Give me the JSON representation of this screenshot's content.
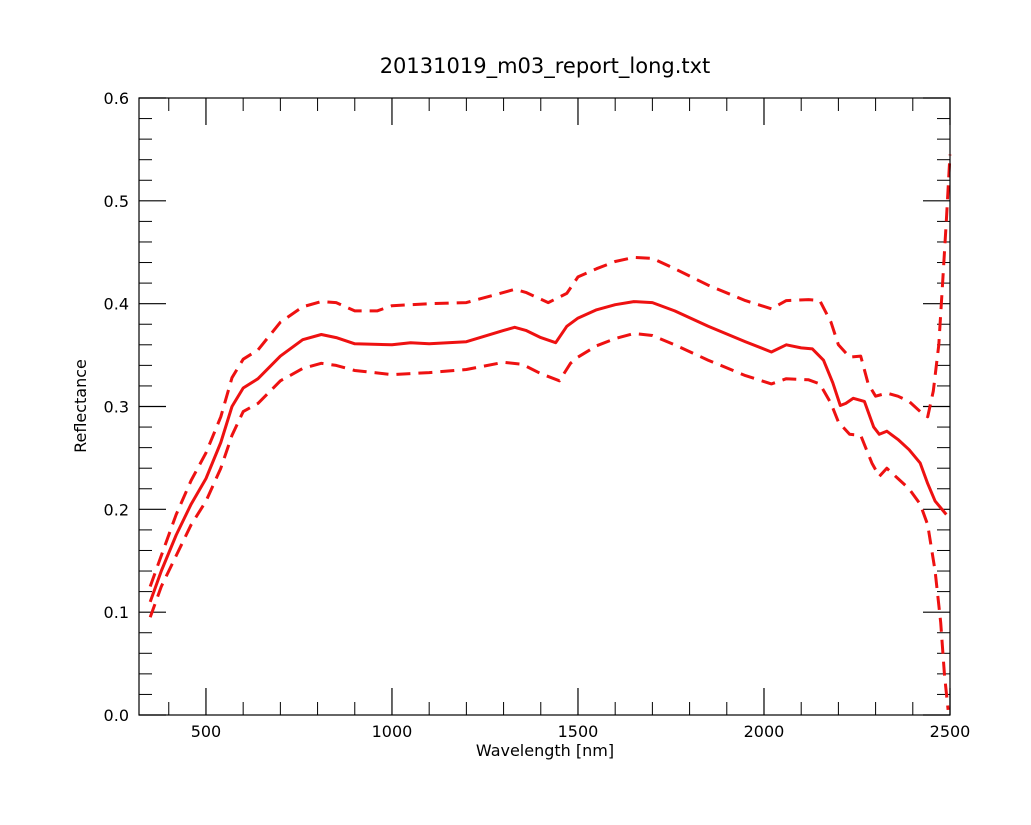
{
  "chart_data": {
    "type": "line",
    "title": "20131019_m03_report_long.txt",
    "xlabel": "Wavelength [nm]",
    "ylabel": "Reflectance",
    "xlim": [
      320,
      2500
    ],
    "ylim": [
      0.0,
      0.6
    ],
    "x_ticks": [
      500,
      1000,
      1500,
      2000,
      2500
    ],
    "y_ticks": [
      0.0,
      0.1,
      0.2,
      0.3,
      0.4,
      0.5,
      0.6
    ],
    "x_tick_labels": [
      "500",
      "1000",
      "1500",
      "2000",
      "2500"
    ],
    "y_tick_labels": [
      "0.0",
      "0.1",
      "0.2",
      "0.3",
      "0.4",
      "0.5",
      "0.6"
    ],
    "grid": false,
    "line_color": "#ee1111",
    "series": [
      {
        "style": "solid",
        "points": [
          [
            350,
            0.11
          ],
          [
            380,
            0.14
          ],
          [
            420,
            0.175
          ],
          [
            460,
            0.205
          ],
          [
            500,
            0.23
          ],
          [
            540,
            0.265
          ],
          [
            570,
            0.3
          ],
          [
            600,
            0.318
          ],
          [
            640,
            0.327
          ],
          [
            700,
            0.349
          ],
          [
            760,
            0.365
          ],
          [
            810,
            0.37
          ],
          [
            850,
            0.367
          ],
          [
            900,
            0.361
          ],
          [
            1000,
            0.36
          ],
          [
            1050,
            0.362
          ],
          [
            1100,
            0.361
          ],
          [
            1200,
            0.363
          ],
          [
            1300,
            0.374
          ],
          [
            1330,
            0.377
          ],
          [
            1360,
            0.374
          ],
          [
            1400,
            0.367
          ],
          [
            1440,
            0.362
          ],
          [
            1470,
            0.378
          ],
          [
            1500,
            0.386
          ],
          [
            1550,
            0.394
          ],
          [
            1600,
            0.399
          ],
          [
            1650,
            0.402
          ],
          [
            1700,
            0.401
          ],
          [
            1760,
            0.393
          ],
          [
            1850,
            0.378
          ],
          [
            1950,
            0.363
          ],
          [
            2020,
            0.353
          ],
          [
            2060,
            0.36
          ],
          [
            2100,
            0.357
          ],
          [
            2130,
            0.356
          ],
          [
            2160,
            0.345
          ],
          [
            2185,
            0.323
          ],
          [
            2205,
            0.301
          ],
          [
            2220,
            0.303
          ],
          [
            2240,
            0.308
          ],
          [
            2270,
            0.305
          ],
          [
            2295,
            0.28
          ],
          [
            2310,
            0.273
          ],
          [
            2330,
            0.276
          ],
          [
            2360,
            0.268
          ],
          [
            2390,
            0.258
          ],
          [
            2420,
            0.245
          ],
          [
            2440,
            0.225
          ],
          [
            2460,
            0.208
          ],
          [
            2490,
            0.195
          ]
        ]
      },
      {
        "style": "dashed",
        "points": [
          [
            350,
            0.125
          ],
          [
            380,
            0.155
          ],
          [
            420,
            0.195
          ],
          [
            460,
            0.228
          ],
          [
            500,
            0.255
          ],
          [
            540,
            0.29
          ],
          [
            570,
            0.328
          ],
          [
            600,
            0.346
          ],
          [
            640,
            0.355
          ],
          [
            700,
            0.382
          ],
          [
            760,
            0.397
          ],
          [
            810,
            0.402
          ],
          [
            850,
            0.401
          ],
          [
            900,
            0.393
          ],
          [
            960,
            0.393
          ],
          [
            1000,
            0.398
          ],
          [
            1050,
            0.399
          ],
          [
            1100,
            0.4
          ],
          [
            1200,
            0.401
          ],
          [
            1300,
            0.411
          ],
          [
            1330,
            0.414
          ],
          [
            1360,
            0.411
          ],
          [
            1420,
            0.401
          ],
          [
            1470,
            0.41
          ],
          [
            1500,
            0.426
          ],
          [
            1550,
            0.434
          ],
          [
            1600,
            0.441
          ],
          [
            1650,
            0.445
          ],
          [
            1700,
            0.444
          ],
          [
            1760,
            0.434
          ],
          [
            1850,
            0.418
          ],
          [
            1950,
            0.403
          ],
          [
            2020,
            0.395
          ],
          [
            2060,
            0.403
          ],
          [
            2120,
            0.404
          ],
          [
            2150,
            0.403
          ],
          [
            2180,
            0.382
          ],
          [
            2200,
            0.36
          ],
          [
            2230,
            0.348
          ],
          [
            2260,
            0.349
          ],
          [
            2280,
            0.322
          ],
          [
            2300,
            0.31
          ],
          [
            2330,
            0.313
          ],
          [
            2360,
            0.31
          ],
          [
            2390,
            0.305
          ],
          [
            2420,
            0.295
          ],
          [
            2440,
            0.29
          ],
          [
            2455,
            0.315
          ],
          [
            2470,
            0.36
          ],
          [
            2480,
            0.42
          ],
          [
            2490,
            0.48
          ],
          [
            2500,
            0.545
          ]
        ]
      },
      {
        "style": "dashed",
        "points": [
          [
            350,
            0.095
          ],
          [
            380,
            0.125
          ],
          [
            420,
            0.155
          ],
          [
            460,
            0.185
          ],
          [
            500,
            0.208
          ],
          [
            540,
            0.24
          ],
          [
            570,
            0.272
          ],
          [
            600,
            0.295
          ],
          [
            640,
            0.303
          ],
          [
            700,
            0.325
          ],
          [
            760,
            0.337
          ],
          [
            810,
            0.342
          ],
          [
            850,
            0.34
          ],
          [
            900,
            0.335
          ],
          [
            1000,
            0.331
          ],
          [
            1100,
            0.333
          ],
          [
            1200,
            0.336
          ],
          [
            1300,
            0.343
          ],
          [
            1350,
            0.341
          ],
          [
            1400,
            0.332
          ],
          [
            1450,
            0.325
          ],
          [
            1480,
            0.342
          ],
          [
            1500,
            0.348
          ],
          [
            1550,
            0.359
          ],
          [
            1600,
            0.366
          ],
          [
            1650,
            0.371
          ],
          [
            1700,
            0.369
          ],
          [
            1760,
            0.36
          ],
          [
            1850,
            0.345
          ],
          [
            1950,
            0.33
          ],
          [
            2020,
            0.322
          ],
          [
            2060,
            0.327
          ],
          [
            2120,
            0.326
          ],
          [
            2150,
            0.322
          ],
          [
            2180,
            0.303
          ],
          [
            2200,
            0.285
          ],
          [
            2230,
            0.273
          ],
          [
            2260,
            0.272
          ],
          [
            2290,
            0.245
          ],
          [
            2310,
            0.232
          ],
          [
            2330,
            0.24
          ],
          [
            2360,
            0.23
          ],
          [
            2390,
            0.22
          ],
          [
            2420,
            0.205
          ],
          [
            2440,
            0.185
          ],
          [
            2460,
            0.14
          ],
          [
            2475,
            0.09
          ],
          [
            2485,
            0.04
          ],
          [
            2495,
            0.005
          ]
        ]
      }
    ]
  }
}
